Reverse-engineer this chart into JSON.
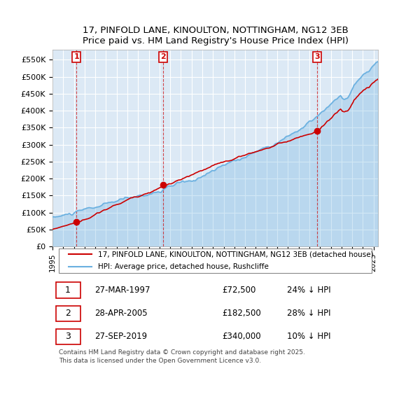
{
  "title_line1": "17, PINFOLD LANE, KINOULTON, NOTTINGHAM, NG12 3EB",
  "title_line2": "Price paid vs. HM Land Registry's House Price Index (HPI)",
  "bg_color": "#dce9f5",
  "plot_bg_color": "#dce9f5",
  "hpi_color": "#6ab0e0",
  "price_color": "#cc0000",
  "ylim": [
    0,
    580000
  ],
  "yticks": [
    0,
    50000,
    100000,
    150000,
    200000,
    250000,
    300000,
    350000,
    400000,
    450000,
    500000,
    550000
  ],
  "ytick_labels": [
    "£0",
    "£50K",
    "£100K",
    "£150K",
    "£200K",
    "£250K",
    "£300K",
    "£350K",
    "£400K",
    "£450K",
    "£500K",
    "£550K"
  ],
  "sale_dates": [
    "1997-03-27",
    "2005-04-28",
    "2019-09-27"
  ],
  "sale_prices": [
    72500,
    182500,
    340000
  ],
  "sale_labels": [
    "1",
    "2",
    "3"
  ],
  "legend_label_price": "17, PINFOLD LANE, KINOULTON, NOTTINGHAM, NG12 3EB (detached house)",
  "legend_label_hpi": "HPI: Average price, detached house, Rushcliffe",
  "table_rows": [
    {
      "num": "1",
      "date": "27-MAR-1997",
      "price": "£72,500",
      "hpi": "24% ↓ HPI"
    },
    {
      "num": "2",
      "date": "28-APR-2005",
      "price": "£182,500",
      "hpi": "28% ↓ HPI"
    },
    {
      "num": "3",
      "date": "27-SEP-2019",
      "price": "£340,000",
      "hpi": "10% ↓ HPI"
    }
  ],
  "footer": "Contains HM Land Registry data © Crown copyright and database right 2025.\nThis data is licensed under the Open Government Licence v3.0."
}
